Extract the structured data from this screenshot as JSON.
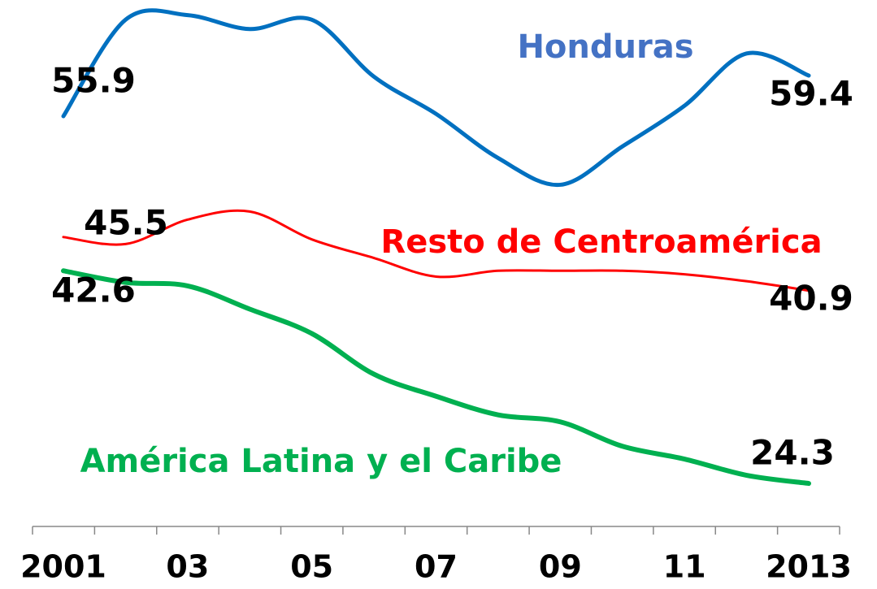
{
  "chart_data": {
    "type": "line",
    "categories": [
      "2001",
      null,
      "03",
      null,
      "05",
      null,
      "07",
      null,
      "09",
      null,
      "11",
      null,
      "2013"
    ],
    "ylim": [
      20.6,
      65.9
    ],
    "series": [
      {
        "name": "Honduras",
        "color": "#0070c0",
        "label_color": "#4472c4",
        "values": [
          55.9,
          64.2,
          64.6,
          63.4,
          64.2,
          59.3,
          56.1,
          52.3,
          50.0,
          53.3,
          56.8,
          61.3,
          59.4
        ]
      },
      {
        "name": "Resto de Centroamérica",
        "color": "#ff0000",
        "label_color": "#ff0000",
        "values": [
          45.5,
          44.9,
          47.0,
          47.7,
          45.3,
          43.7,
          42.1,
          42.6,
          42.6,
          42.6,
          42.3,
          41.7,
          40.9
        ]
      },
      {
        "name": "América Latina y el Caribe",
        "color": "#00b050",
        "label_color": "#00b050",
        "values": [
          42.6,
          41.6,
          41.3,
          39.3,
          37.2,
          33.7,
          31.8,
          30.2,
          29.6,
          27.5,
          26.4,
          25.0,
          24.3
        ]
      }
    ]
  }
}
